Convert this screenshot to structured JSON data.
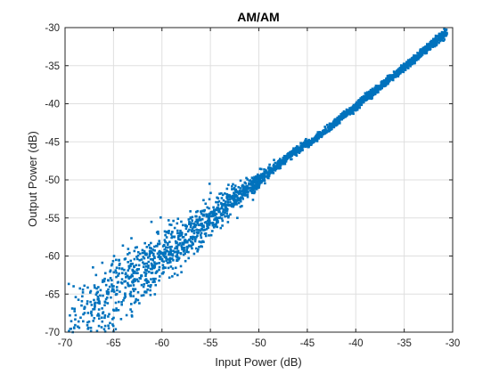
{
  "chart_data": {
    "type": "scatter",
    "title": "AM/AM",
    "xlabel": "Input Power (dB)",
    "ylabel": "Output Power (dB)",
    "xlim": [
      -70,
      -30
    ],
    "ylim": [
      -70,
      -30
    ],
    "xticks": [
      -70,
      -65,
      -60,
      -55,
      -50,
      -45,
      -40,
      -35,
      -30
    ],
    "yticks": [
      -70,
      -65,
      -60,
      -55,
      -50,
      -45,
      -40,
      -35,
      -30
    ],
    "x_tick_labels": [
      "-70",
      "-65",
      "-60",
      "-55",
      "-50",
      "-45",
      "-40",
      "-35",
      "-30"
    ],
    "y_tick_labels": [
      "-70",
      "-65",
      "-60",
      "-55",
      "-50",
      "-45",
      "-40",
      "-35",
      "-30"
    ],
    "grid": true,
    "legend": "none",
    "marker_color": "#0072BD",
    "series": [
      {
        "description_of_trend": "dense linear band, output ≈ input, spread widens at low power",
        "points": [
          [
            -69.5,
            -67.8
          ],
          [
            -69.2,
            -70.0
          ],
          [
            -68.9,
            -65.4
          ],
          [
            -68.6,
            -68.6
          ],
          [
            -68.3,
            -66.5
          ],
          [
            -68.0,
            -63.9
          ],
          [
            -67.7,
            -69.1
          ],
          [
            -67.4,
            -64.8
          ],
          [
            -67.1,
            -67.0
          ],
          [
            -66.8,
            -62.5
          ],
          [
            -66.5,
            -65.9
          ],
          [
            -66.2,
            -68.1
          ],
          [
            -65.9,
            -63.0
          ],
          [
            -65.6,
            -66.2
          ],
          [
            -65.3,
            -61.9
          ],
          [
            -65.0,
            -64.4
          ],
          [
            -64.7,
            -66.9
          ],
          [
            -64.4,
            -61.2
          ],
          [
            -64.1,
            -63.6
          ],
          [
            -63.8,
            -65.1
          ],
          [
            -63.5,
            -60.8
          ],
          [
            -63.2,
            -62.7
          ],
          [
            -62.9,
            -64.6
          ],
          [
            -62.6,
            -60.1
          ],
          [
            -62.3,
            -62.9
          ],
          [
            -62.0,
            -59.6
          ],
          [
            -61.7,
            -61.8
          ],
          [
            -61.4,
            -63.9
          ],
          [
            -61.1,
            -59.0
          ],
          [
            -60.8,
            -61.2
          ],
          [
            -60.5,
            -58.7
          ],
          [
            -60.2,
            -60.4
          ],
          [
            -59.9,
            -62.3
          ],
          [
            -59.6,
            -58.2
          ],
          [
            -59.3,
            -59.8
          ],
          [
            -59.0,
            -57.6
          ],
          [
            -58.7,
            -59.5
          ],
          [
            -58.4,
            -60.6
          ],
          [
            -58.1,
            -57.0
          ],
          [
            -57.8,
            -58.4
          ],
          [
            -57.5,
            -56.4
          ],
          [
            -57.2,
            -57.9
          ],
          [
            -56.9,
            -59.0
          ],
          [
            -56.6,
            -55.9
          ],
          [
            -56.3,
            -57.0
          ],
          [
            -56.0,
            -55.3
          ],
          [
            -55.7,
            -56.6
          ],
          [
            -55.4,
            -54.8
          ],
          [
            -55.1,
            -55.9
          ],
          [
            -54.8,
            -54.3
          ],
          [
            -54.5,
            -55.1
          ],
          [
            -54.2,
            -53.7
          ],
          [
            -53.9,
            -54.6
          ],
          [
            -53.6,
            -53.2
          ],
          [
            -53.3,
            -53.8
          ],
          [
            -53.0,
            -52.6
          ],
          [
            -52.7,
            -53.3
          ],
          [
            -52.4,
            -52.0
          ],
          [
            -52.1,
            -52.7
          ],
          [
            -51.8,
            -51.5
          ],
          [
            -51.5,
            -52.0
          ],
          [
            -51.2,
            -51.0
          ],
          [
            -50.9,
            -51.4
          ],
          [
            -50.6,
            -50.4
          ],
          [
            -50.3,
            -50.8
          ],
          [
            -50.0,
            -49.9
          ],
          [
            -49.7,
            -50.2
          ],
          [
            -49.4,
            -49.3
          ],
          [
            -49.1,
            -49.7
          ],
          [
            -48.8,
            -48.8
          ],
          [
            -48.5,
            -49.1
          ],
          [
            -48.2,
            -48.2
          ],
          [
            -47.9,
            -48.5
          ],
          [
            -47.6,
            -47.7
          ],
          [
            -47.3,
            -47.9
          ],
          [
            -47.0,
            -47.1
          ],
          [
            -46.7,
            -47.3
          ],
          [
            -46.4,
            -46.5
          ],
          [
            -46.1,
            -46.8
          ],
          [
            -45.8,
            -46.0
          ],
          [
            -45.5,
            -46.1
          ],
          [
            -45.2,
            -45.4
          ],
          [
            -44.9,
            -45.5
          ],
          [
            -44.6,
            -44.9
          ],
          [
            -44.3,
            -44.9
          ],
          [
            -44.0,
            -44.3
          ],
          [
            -43.7,
            -44.3
          ],
          [
            -43.4,
            -43.7
          ],
          [
            -43.1,
            -43.7
          ],
          [
            -42.8,
            -43.2
          ],
          [
            -42.5,
            -43.1
          ],
          [
            -42.2,
            -42.6
          ],
          [
            -41.9,
            -42.5
          ],
          [
            -41.6,
            -42.0
          ],
          [
            -41.3,
            -41.9
          ],
          [
            -41.0,
            -41.5
          ],
          [
            -40.7,
            -41.3
          ],
          [
            -40.4,
            -40.9
          ],
          [
            -40.1,
            -40.7
          ],
          [
            -39.8,
            -40.3
          ],
          [
            -39.5,
            -40.1
          ],
          [
            -39.2,
            -39.8
          ],
          [
            -38.9,
            -39.5
          ],
          [
            -38.6,
            -39.2
          ],
          [
            -38.3,
            -38.9
          ],
          [
            -38.0,
            -38.6
          ],
          [
            -37.7,
            -38.3
          ],
          [
            -37.4,
            -38.0
          ],
          [
            -37.1,
            -37.7
          ],
          [
            -36.8,
            -37.4
          ],
          [
            -36.5,
            -37.0
          ],
          [
            -36.2,
            -36.7
          ],
          [
            -35.9,
            -36.3
          ],
          [
            -35.6,
            -36.0
          ],
          [
            -35.3,
            -35.6
          ],
          [
            -35.0,
            -35.3
          ],
          [
            -34.7,
            -34.9
          ],
          [
            -34.4,
            -34.5
          ],
          [
            -34.1,
            -34.1
          ],
          [
            -33.8,
            -33.8
          ],
          [
            -33.5,
            -33.4
          ],
          [
            -33.2,
            -33.0
          ],
          [
            -32.9,
            -32.6
          ],
          [
            -32.6,
            -32.3
          ],
          [
            -32.3,
            -31.9
          ],
          [
            -32.0,
            -31.5
          ],
          [
            -31.7,
            -31.2
          ],
          [
            -31.4,
            -30.9
          ],
          [
            -31.1,
            -30.6
          ],
          [
            -30.8,
            -30.4
          ]
        ]
      }
    ]
  }
}
